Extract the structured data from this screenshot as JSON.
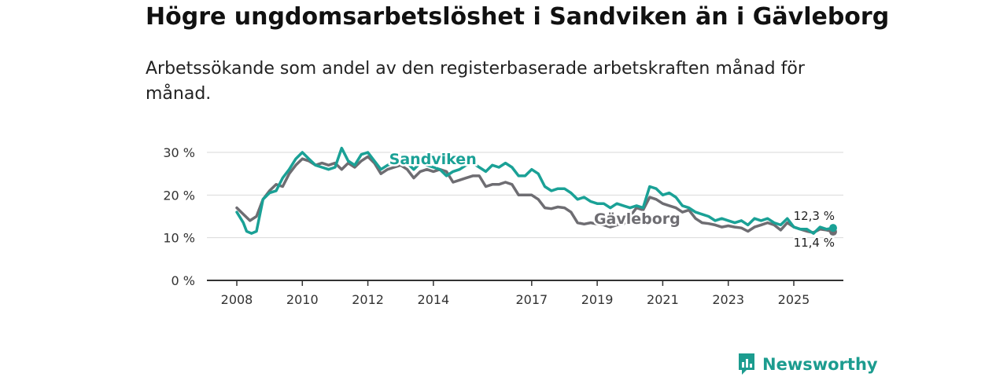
{
  "title": "Högre ungdomsarbetslöshet i Sandviken än i Gävleborg",
  "subtitle": "Arbetssökande som andel av den registerbaserade arbetskraften månad för månad.",
  "brand": {
    "name": "Newsworthy",
    "color": "#1c9c8f"
  },
  "chart_data": {
    "type": "line",
    "ylim": [
      0,
      30
    ],
    "xlim": [
      2008,
      2026.6
    ],
    "yticks": [
      {
        "value": 0,
        "label": "0 %"
      },
      {
        "value": 10,
        "label": "10 %"
      },
      {
        "value": 20,
        "label": "20 %"
      },
      {
        "value": 30,
        "label": "30 %"
      }
    ],
    "xticks": [
      2008,
      2010,
      2012,
      2014,
      2017,
      2019,
      2021,
      2023,
      2025
    ],
    "grid": true,
    "series": [
      {
        "name": "Gävleborg",
        "color": "#6e6d72",
        "end_label": "11,4 %",
        "points": [
          [
            2008.0,
            17.0
          ],
          [
            2008.2,
            15.5
          ],
          [
            2008.4,
            14.0
          ],
          [
            2008.6,
            15.0
          ],
          [
            2008.8,
            19.0
          ],
          [
            2009.0,
            21.0
          ],
          [
            2009.2,
            22.5
          ],
          [
            2009.4,
            22.0
          ],
          [
            2009.6,
            25.0
          ],
          [
            2009.8,
            27.0
          ],
          [
            2010.0,
            28.5
          ],
          [
            2010.2,
            28.0
          ],
          [
            2010.4,
            27.0
          ],
          [
            2010.6,
            27.5
          ],
          [
            2010.8,
            27.0
          ],
          [
            2011.0,
            27.5
          ],
          [
            2011.2,
            26.0
          ],
          [
            2011.4,
            27.5
          ],
          [
            2011.6,
            26.5
          ],
          [
            2011.8,
            28.0
          ],
          [
            2012.0,
            29.0
          ],
          [
            2012.2,
            27.5
          ],
          [
            2012.4,
            25.0
          ],
          [
            2012.6,
            26.0
          ],
          [
            2012.8,
            26.5
          ],
          [
            2013.0,
            27.0
          ],
          [
            2013.2,
            26.0
          ],
          [
            2013.4,
            24.0
          ],
          [
            2013.6,
            25.5
          ],
          [
            2013.8,
            26.0
          ],
          [
            2014.0,
            25.5
          ],
          [
            2014.2,
            26.0
          ],
          [
            2014.4,
            25.5
          ],
          [
            2014.6,
            23.0
          ],
          [
            2014.8,
            23.5
          ],
          [
            2015.0,
            24.0
          ],
          [
            2015.2,
            24.5
          ],
          [
            2015.4,
            24.5
          ],
          [
            2015.6,
            22.0
          ],
          [
            2015.8,
            22.5
          ],
          [
            2016.0,
            22.5
          ],
          [
            2016.2,
            23.0
          ],
          [
            2016.4,
            22.5
          ],
          [
            2016.6,
            20.0
          ],
          [
            2016.8,
            20.0
          ],
          [
            2017.0,
            20.0
          ],
          [
            2017.2,
            19.0
          ],
          [
            2017.4,
            17.0
          ],
          [
            2017.6,
            16.8
          ],
          [
            2017.8,
            17.2
          ],
          [
            2018.0,
            17.0
          ],
          [
            2018.2,
            16.0
          ],
          [
            2018.4,
            13.5
          ],
          [
            2018.6,
            13.2
          ],
          [
            2018.8,
            13.5
          ],
          [
            2019.0,
            13.2
          ],
          [
            2019.2,
            13.0
          ],
          [
            2019.4,
            12.5
          ],
          [
            2019.6,
            13.0
          ],
          [
            2019.8,
            13.2
          ],
          [
            2020.0,
            15.0
          ],
          [
            2020.2,
            17.0
          ],
          [
            2020.4,
            16.5
          ],
          [
            2020.6,
            19.5
          ],
          [
            2020.8,
            19.0
          ],
          [
            2021.0,
            18.0
          ],
          [
            2021.2,
            17.5
          ],
          [
            2021.4,
            17.0
          ],
          [
            2021.6,
            16.0
          ],
          [
            2021.8,
            16.5
          ],
          [
            2022.0,
            14.5
          ],
          [
            2022.2,
            13.5
          ],
          [
            2022.4,
            13.3
          ],
          [
            2022.6,
            13.0
          ],
          [
            2022.8,
            12.5
          ],
          [
            2023.0,
            12.8
          ],
          [
            2023.2,
            12.5
          ],
          [
            2023.4,
            12.3
          ],
          [
            2023.6,
            11.5
          ],
          [
            2023.8,
            12.5
          ],
          [
            2024.0,
            13.0
          ],
          [
            2024.2,
            13.5
          ],
          [
            2024.4,
            13.0
          ],
          [
            2024.6,
            11.8
          ],
          [
            2024.8,
            13.5
          ],
          [
            2025.0,
            12.5
          ],
          [
            2025.2,
            12.0
          ],
          [
            2025.4,
            11.5
          ],
          [
            2025.6,
            11.2
          ],
          [
            2025.8,
            12.0
          ],
          [
            2026.0,
            11.8
          ],
          [
            2026.2,
            11.4
          ]
        ]
      },
      {
        "name": "Sandviken",
        "color": "#1aa196",
        "end_label": "12,3 %",
        "points": [
          [
            2008.0,
            16.0
          ],
          [
            2008.2,
            13.5
          ],
          [
            2008.3,
            11.5
          ],
          [
            2008.45,
            11.0
          ],
          [
            2008.6,
            11.5
          ],
          [
            2008.8,
            19.0
          ],
          [
            2009.0,
            20.5
          ],
          [
            2009.2,
            21.0
          ],
          [
            2009.4,
            24.0
          ],
          [
            2009.6,
            26.0
          ],
          [
            2009.8,
            28.5
          ],
          [
            2010.0,
            30.0
          ],
          [
            2010.2,
            28.5
          ],
          [
            2010.4,
            27.0
          ],
          [
            2010.6,
            26.5
          ],
          [
            2010.8,
            26.0
          ],
          [
            2011.0,
            26.5
          ],
          [
            2011.2,
            31.0
          ],
          [
            2011.4,
            28.0
          ],
          [
            2011.6,
            27.0
          ],
          [
            2011.8,
            29.5
          ],
          [
            2012.0,
            30.0
          ],
          [
            2012.2,
            28.0
          ],
          [
            2012.4,
            26.0
          ],
          [
            2012.6,
            27.0
          ],
          [
            2012.8,
            27.5
          ],
          [
            2013.0,
            28.0
          ],
          [
            2013.2,
            27.5
          ],
          [
            2013.4,
            26.0
          ],
          [
            2013.6,
            27.5
          ],
          [
            2013.8,
            27.0
          ],
          [
            2014.0,
            26.5
          ],
          [
            2014.2,
            26.0
          ],
          [
            2014.4,
            24.5
          ],
          [
            2014.6,
            25.5
          ],
          [
            2014.8,
            26.0
          ],
          [
            2015.0,
            27.0
          ],
          [
            2015.2,
            27.5
          ],
          [
            2015.4,
            26.5
          ],
          [
            2015.6,
            25.5
          ],
          [
            2015.8,
            27.0
          ],
          [
            2016.0,
            26.5
          ],
          [
            2016.2,
            27.5
          ],
          [
            2016.4,
            26.5
          ],
          [
            2016.6,
            24.5
          ],
          [
            2016.8,
            24.5
          ],
          [
            2017.0,
            26.0
          ],
          [
            2017.2,
            25.0
          ],
          [
            2017.4,
            22.0
          ],
          [
            2017.6,
            21.0
          ],
          [
            2017.8,
            21.5
          ],
          [
            2018.0,
            21.5
          ],
          [
            2018.2,
            20.5
          ],
          [
            2018.4,
            19.0
          ],
          [
            2018.6,
            19.5
          ],
          [
            2018.8,
            18.5
          ],
          [
            2019.0,
            18.0
          ],
          [
            2019.2,
            18.0
          ],
          [
            2019.4,
            17.0
          ],
          [
            2019.6,
            18.0
          ],
          [
            2019.8,
            17.5
          ],
          [
            2020.0,
            17.0
          ],
          [
            2020.2,
            17.5
          ],
          [
            2020.4,
            17.0
          ],
          [
            2020.6,
            22.0
          ],
          [
            2020.8,
            21.5
          ],
          [
            2021.0,
            20.0
          ],
          [
            2021.2,
            20.5
          ],
          [
            2021.4,
            19.5
          ],
          [
            2021.6,
            17.5
          ],
          [
            2021.8,
            17.0
          ],
          [
            2022.0,
            16.0
          ],
          [
            2022.2,
            15.5
          ],
          [
            2022.4,
            15.0
          ],
          [
            2022.6,
            14.0
          ],
          [
            2022.8,
            14.5
          ],
          [
            2023.0,
            14.0
          ],
          [
            2023.2,
            13.5
          ],
          [
            2023.4,
            14.0
          ],
          [
            2023.6,
            13.0
          ],
          [
            2023.8,
            14.5
          ],
          [
            2024.0,
            14.0
          ],
          [
            2024.2,
            14.5
          ],
          [
            2024.4,
            13.5
          ],
          [
            2024.6,
            13.0
          ],
          [
            2024.8,
            14.5
          ],
          [
            2025.0,
            12.5
          ],
          [
            2025.2,
            12.0
          ],
          [
            2025.4,
            12.0
          ],
          [
            2025.6,
            11.0
          ],
          [
            2025.8,
            12.5
          ],
          [
            2026.0,
            12.0
          ],
          [
            2026.2,
            12.3
          ]
        ]
      }
    ]
  }
}
